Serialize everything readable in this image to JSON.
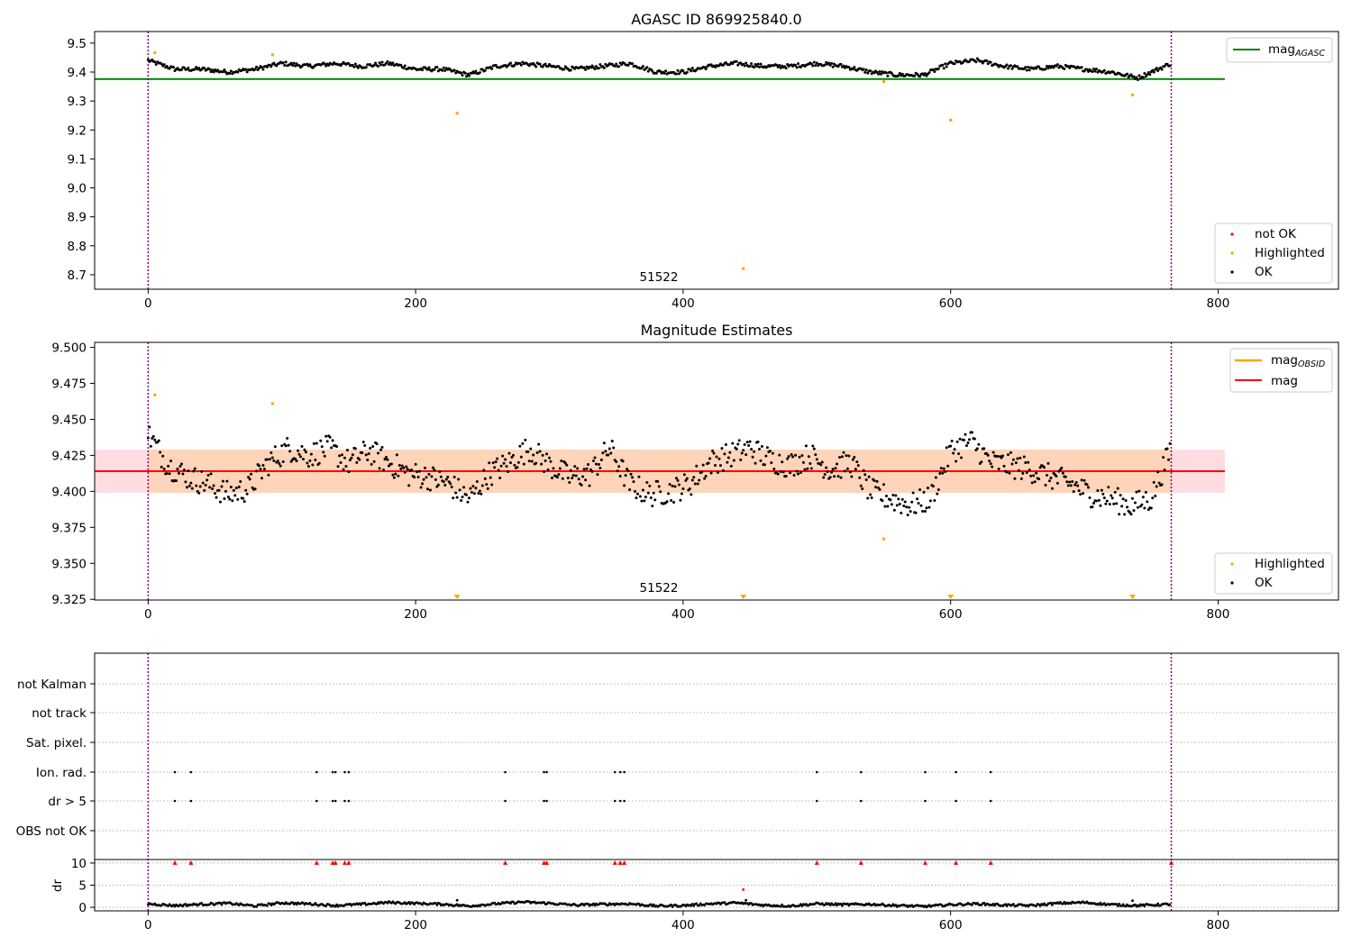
{
  "colors": {
    "ok": "#000000",
    "highlighted": "#ffa500",
    "not_ok": "#ff0000",
    "mag_agasc_line": "#008000",
    "mag_line": "#ff0000",
    "mag_obsid_line": "#ffa500",
    "band_outer": "#ffc0cb",
    "band_inner": "#ffd2b0",
    "obs_boundary": "#800080"
  },
  "chart_data": [
    {
      "type": "scatter",
      "title": "AGASC ID 869925840.0",
      "xlim": [
        -40,
        890
      ],
      "ylim": [
        8.65,
        9.54
      ],
      "xticks": [
        0,
        200,
        400,
        600,
        800
      ],
      "yticks": [
        8.7,
        8.8,
        8.9,
        9.0,
        9.1,
        9.2,
        9.3,
        9.4,
        9.5
      ],
      "obsid_label": "51522",
      "obs_boundaries": [
        0,
        765
      ],
      "reference_lines": [
        {
          "name": "mag",
          "sub": "AGASC",
          "y": 9.376,
          "x_range": [
            -40,
            805
          ]
        }
      ],
      "legend_top": [
        {
          "label": "mag",
          "sub": "AGASC",
          "kind": "line",
          "color": "#008000"
        }
      ],
      "legend_bottom": [
        {
          "label": "not OK",
          "kind": "marker",
          "color": "#ff0000"
        },
        {
          "label": "Highlighted",
          "kind": "marker",
          "color": "#ffa500"
        },
        {
          "label": "OK",
          "kind": "marker",
          "color": "#000000"
        }
      ],
      "series_ok": {
        "name": "OK",
        "n": 765,
        "knots_x": [
          0,
          20,
          40,
          60,
          80,
          100,
          120,
          140,
          160,
          180,
          200,
          220,
          240,
          260,
          280,
          300,
          320,
          340,
          360,
          380,
          400,
          420,
          440,
          460,
          480,
          500,
          520,
          540,
          560,
          580,
          600,
          620,
          640,
          660,
          680,
          700,
          720,
          740,
          765
        ],
        "knots_y": [
          9.44,
          9.41,
          9.41,
          9.4,
          9.41,
          9.43,
          9.42,
          9.43,
          9.42,
          9.43,
          9.41,
          9.41,
          9.39,
          9.42,
          9.43,
          9.42,
          9.41,
          9.42,
          9.43,
          9.4,
          9.4,
          9.42,
          9.43,
          9.42,
          9.42,
          9.43,
          9.42,
          9.4,
          9.39,
          9.39,
          9.43,
          9.44,
          9.42,
          9.41,
          9.42,
          9.41,
          9.4,
          9.38,
          9.43
        ],
        "spread": 0.007
      },
      "highlighted": [
        {
          "x": 5,
          "y": 9.467
        },
        {
          "x": 93,
          "y": 9.46
        },
        {
          "x": 231,
          "y": 9.258
        },
        {
          "x": 445,
          "y": 8.721
        },
        {
          "x": 550,
          "y": 9.367
        },
        {
          "x": 600,
          "y": 9.234
        },
        {
          "x": 736,
          "y": 9.321
        }
      ]
    },
    {
      "type": "scatter",
      "title": "Magnitude Estimates",
      "xlim": [
        -40,
        890
      ],
      "ylim": [
        9.3245,
        9.5035
      ],
      "xticks": [
        0,
        200,
        400,
        600,
        800
      ],
      "yticks": [
        9.325,
        9.35,
        9.375,
        9.4,
        9.425,
        9.45,
        9.475,
        9.5
      ],
      "ytick_labels": [
        "9.325",
        "9.350",
        "9.375",
        "9.400",
        "9.425",
        "9.450",
        "9.475",
        "9.500"
      ],
      "obsid_label": "51522",
      "obs_boundaries": [
        0,
        765
      ],
      "mag": 9.414,
      "mag_band": [
        9.399,
        9.429
      ],
      "band_x_range": [
        -40,
        805
      ],
      "legend_top": [
        {
          "label": "mag",
          "sub": "OBSID",
          "kind": "line",
          "color": "#ffa500"
        },
        {
          "label": "mag",
          "kind": "line",
          "color": "#ff0000"
        }
      ],
      "legend_bottom": [
        {
          "label": "Highlighted",
          "kind": "marker",
          "color": "#ffa500"
        },
        {
          "label": "OK",
          "kind": "marker",
          "color": "#000000"
        }
      ],
      "series_ok": {
        "name": "OK",
        "n": 765,
        "knots_x": [
          0,
          15,
          30,
          45,
          60,
          75,
          90,
          105,
          120,
          135,
          150,
          165,
          180,
          195,
          210,
          225,
          240,
          255,
          270,
          285,
          300,
          315,
          330,
          345,
          360,
          375,
          390,
          405,
          420,
          435,
          450,
          465,
          480,
          495,
          510,
          525,
          540,
          555,
          570,
          585,
          600,
          615,
          630,
          645,
          660,
          675,
          690,
          705,
          720,
          735,
          750,
          765
        ],
        "knots_y": [
          9.44,
          9.418,
          9.41,
          9.405,
          9.398,
          9.402,
          9.42,
          9.43,
          9.425,
          9.43,
          9.42,
          9.428,
          9.42,
          9.412,
          9.41,
          9.405,
          9.395,
          9.412,
          9.42,
          9.43,
          9.418,
          9.41,
          9.412,
          9.43,
          9.405,
          9.398,
          9.4,
          9.405,
          9.42,
          9.425,
          9.43,
          9.422,
          9.418,
          9.425,
          9.415,
          9.42,
          9.4,
          9.395,
          9.39,
          9.395,
          9.428,
          9.435,
          9.42,
          9.418,
          9.415,
          9.41,
          9.405,
          9.398,
          9.395,
          9.39,
          9.395,
          9.43
        ],
        "spread": 0.009
      },
      "highlighted": [
        {
          "x": 5,
          "y": 9.467
        },
        {
          "x": 93,
          "y": 9.461
        },
        {
          "x": 550,
          "y": 9.367
        }
      ],
      "highlighted_offscale": [
        231,
        445,
        600,
        736
      ]
    },
    {
      "type": "scatter",
      "title": "",
      "xlim": [
        -40,
        890
      ],
      "xticks": [
        0,
        200,
        400,
        600,
        800
      ],
      "obs_boundaries": [
        0,
        765
      ],
      "flag_rows": [
        "not Kalman",
        "not track",
        "Sat. pixel.",
        "Ion. rad.",
        "dr > 5",
        "OBS not OK"
      ],
      "flag_events_x": [
        20,
        32,
        126,
        138,
        140,
        147,
        150,
        267,
        296,
        298,
        349,
        353,
        356,
        500,
        533,
        581,
        604,
        630
      ],
      "dr": {
        "ylabel": "dr",
        "ylim": [
          -0.8,
          10.8
        ],
        "yticks": [
          0,
          5,
          10
        ],
        "outliers": [
          {
            "x": 231,
            "y": 1.6
          },
          {
            "x": 445,
            "y": 4.0
          },
          {
            "x": 447,
            "y": 1.6
          },
          {
            "x": 736,
            "y": 1.5
          }
        ],
        "clipped_x": [
          20,
          32,
          126,
          138,
          140,
          147,
          150,
          267,
          296,
          298,
          349,
          353,
          356,
          500,
          533,
          581,
          604,
          630,
          765
        ],
        "knots_x": [
          0,
          20,
          40,
          60,
          80,
          100,
          120,
          140,
          160,
          180,
          200,
          220,
          240,
          260,
          280,
          300,
          320,
          340,
          360,
          380,
          400,
          420,
          440,
          460,
          480,
          500,
          520,
          540,
          560,
          580,
          600,
          620,
          640,
          660,
          680,
          700,
          720,
          740,
          765
        ],
        "knots_y": [
          0.8,
          0.4,
          0.7,
          0.9,
          0.3,
          1.0,
          0.8,
          0.4,
          0.7,
          1.1,
          0.9,
          0.7,
          0.3,
          0.8,
          1.2,
          0.9,
          0.5,
          0.7,
          0.8,
          0.3,
          0.4,
          0.8,
          1.0,
          0.5,
          0.3,
          0.8,
          0.6,
          0.7,
          0.4,
          0.2,
          0.6,
          0.8,
          0.5,
          0.4,
          0.9,
          1.1,
          0.6,
          0.4,
          0.7
        ]
      }
    }
  ]
}
